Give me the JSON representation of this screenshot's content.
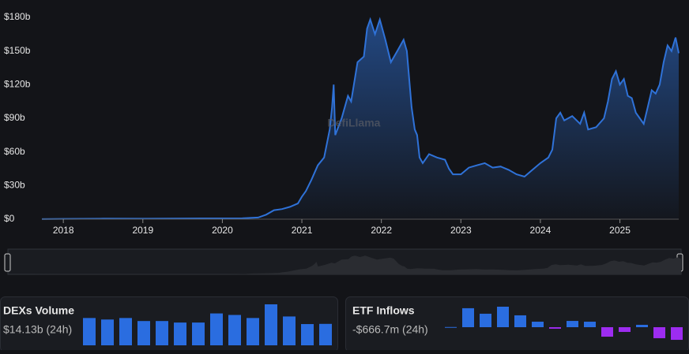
{
  "chart_data": [
    {
      "type": "area",
      "watermark": "DefiLlama",
      "color": "#2f72d8",
      "x": [
        2017.73,
        2018.0,
        2018.5,
        2019.0,
        2019.5,
        2020.0,
        2020.25,
        2020.45,
        2020.55,
        2020.65,
        2020.75,
        2020.85,
        2020.95,
        2021.0,
        2021.05,
        2021.12,
        2021.2,
        2021.28,
        2021.35,
        2021.38,
        2021.4,
        2021.42,
        2021.5,
        2021.58,
        2021.62,
        2021.7,
        2021.78,
        2021.82,
        2021.86,
        2021.92,
        2021.98,
        2022.05,
        2022.12,
        2022.2,
        2022.28,
        2022.32,
        2022.38,
        2022.42,
        2022.45,
        2022.48,
        2022.52,
        2022.6,
        2022.7,
        2022.8,
        2022.85,
        2022.9,
        2023.0,
        2023.1,
        2023.2,
        2023.3,
        2023.4,
        2023.5,
        2023.6,
        2023.7,
        2023.8,
        2023.9,
        2024.0,
        2024.1,
        2024.15,
        2024.2,
        2024.25,
        2024.3,
        2024.4,
        2024.5,
        2024.55,
        2024.6,
        2024.7,
        2024.8,
        2024.85,
        2024.9,
        2024.95,
        2025.0,
        2025.05,
        2025.1,
        2025.15,
        2025.2,
        2025.25,
        2025.3,
        2025.35,
        2025.4,
        2025.45,
        2025.5,
        2025.55,
        2025.6,
        2025.65,
        2025.7,
        2025.74
      ],
      "values": [
        0.1,
        0.3,
        0.5,
        0.4,
        0.6,
        0.7,
        0.8,
        1.5,
        4,
        8,
        9,
        11,
        14,
        20,
        25,
        35,
        48,
        55,
        80,
        100,
        120,
        75,
        90,
        110,
        105,
        140,
        145,
        170,
        178,
        165,
        178,
        160,
        140,
        150,
        160,
        150,
        100,
        80,
        75,
        55,
        50,
        58,
        55,
        53,
        45,
        40,
        40,
        46,
        48,
        50,
        46,
        47,
        44,
        40,
        38,
        44,
        50,
        55,
        62,
        90,
        95,
        88,
        92,
        85,
        95,
        80,
        82,
        90,
        105,
        125,
        132,
        120,
        125,
        110,
        108,
        95,
        90,
        85,
        100,
        115,
        112,
        120,
        140,
        155,
        150,
        162,
        148
      ],
      "xlim": [
        2017.73,
        2025.74
      ],
      "xticks": [
        2018,
        2019,
        2020,
        2021,
        2022,
        2023,
        2024,
        2025
      ],
      "ylim": [
        0,
        180
      ],
      "yticks": [
        {
          "value": 0,
          "label": "$0"
        },
        {
          "value": 30,
          "label": "$30b"
        },
        {
          "value": 60,
          "label": "$60b"
        },
        {
          "value": 90,
          "label": "$90b"
        },
        {
          "value": 120,
          "label": "$120b"
        },
        {
          "value": 150,
          "label": "$150b"
        },
        {
          "value": 180,
          "label": "$180b"
        }
      ]
    },
    {
      "type": "bar",
      "title": "DEXs Volume",
      "subtitle": "$14.13b (24h)",
      "color": "#2a6de0",
      "values": [
        18,
        17,
        18,
        16,
        16,
        15,
        15,
        21,
        20,
        18,
        27,
        19,
        14,
        14.13
      ]
    },
    {
      "type": "bar",
      "title": "ETF Inflows",
      "subtitle": "-$666.7m (24h)",
      "color": "#2a6de0",
      "negative_color": "#9d2cf0",
      "values": [
        10,
        1000,
        710,
        1080,
        625,
        290,
        -80,
        330,
        290,
        -500,
        -250,
        125,
        -580,
        -666.7
      ]
    }
  ]
}
